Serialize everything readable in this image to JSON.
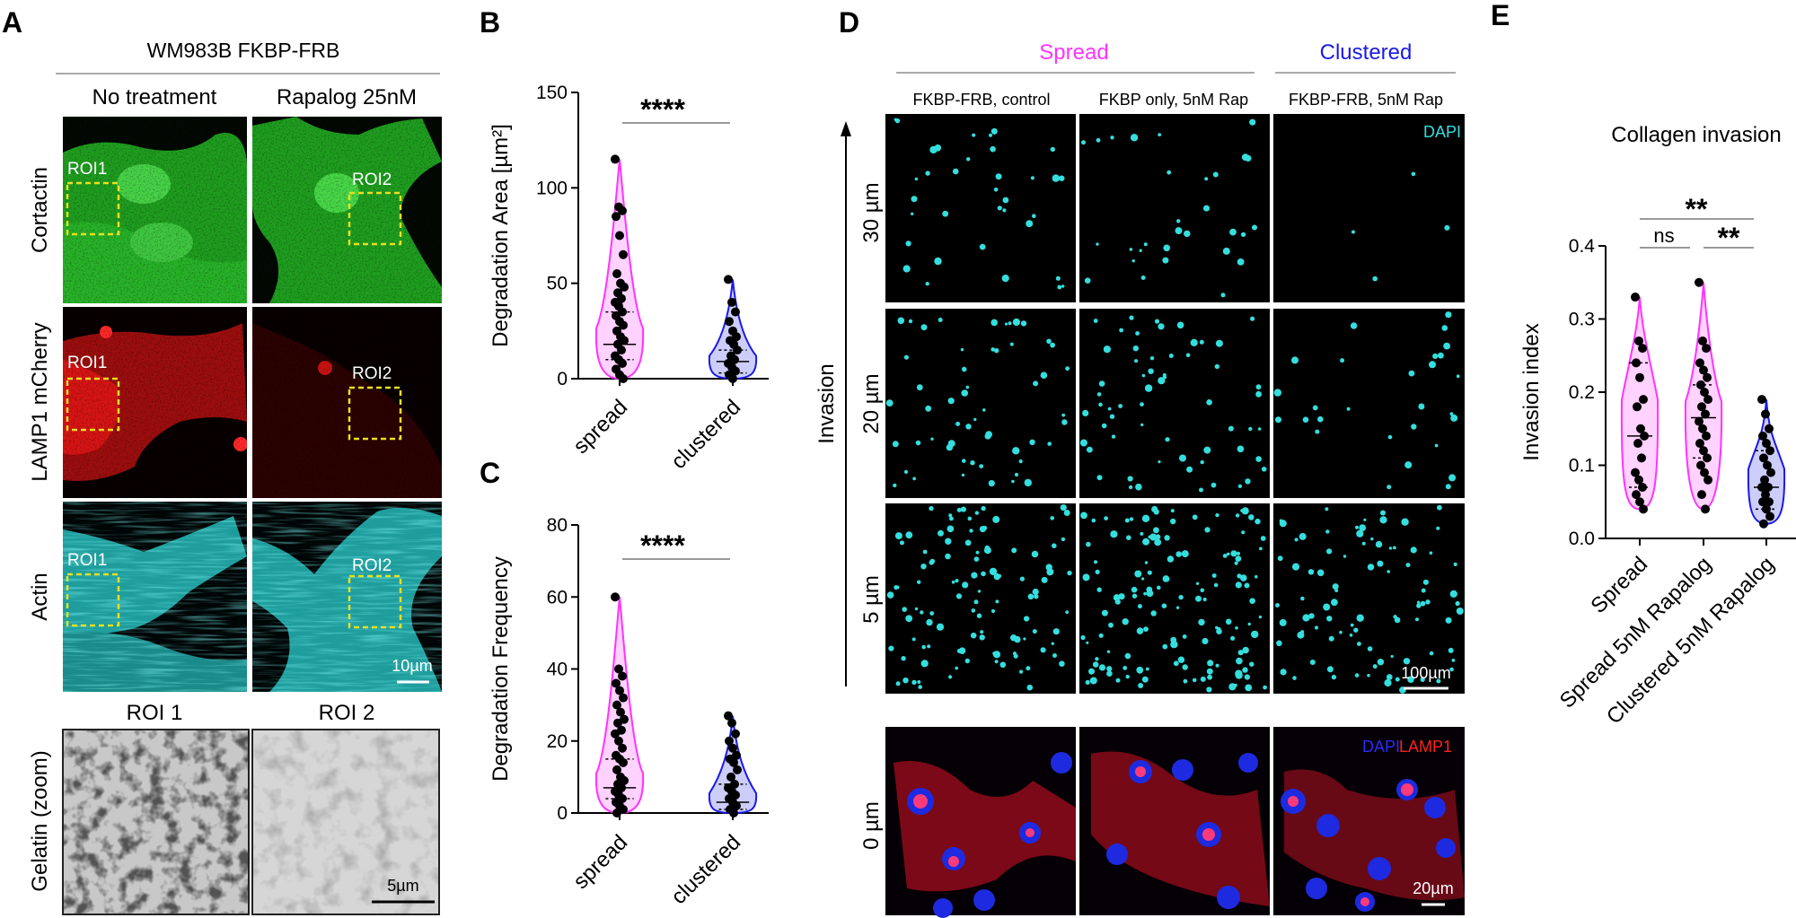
{
  "panels": {
    "A": {
      "letter": "A",
      "title": "WM983B FKBP-FRB",
      "conditions": [
        "No treatment",
        "Rapalog 25nM"
      ],
      "rows": [
        "Cortactin",
        "LAMP1 mCherry",
        "Actin"
      ],
      "roi_labels": [
        "ROI1",
        "ROI2"
      ],
      "scale_bar": "10µm",
      "zoom_titles": [
        "ROI 1",
        "ROI 2"
      ],
      "zoom_row": "Gelatin (zoom)",
      "zoom_scale": "5µm"
    },
    "B": {
      "letter": "B",
      "significance": "****"
    },
    "C": {
      "letter": "C",
      "significance": "****"
    },
    "D": {
      "letter": "D",
      "groups": [
        "Spread",
        "Clustered"
      ],
      "columns": [
        "FKBP-FRB, control",
        "FKBP only, 5nM Rap",
        "FKBP-FRB, 5nM Rap"
      ],
      "axis_label": "Invasion",
      "depths": [
        "30 µm",
        "20 µm",
        "5 µm",
        "0 µm"
      ],
      "dapi_label": "DAPI",
      "lamp1_label": "LAMP1",
      "scale_bar": "100µm",
      "zoom_scale": "20µm"
    },
    "E": {
      "letter": "E",
      "title": "Collagen invasion",
      "sig_top": "**",
      "sig_ns": "ns",
      "sig_right": "**"
    }
  },
  "colors": {
    "magenta": "#ff33ff",
    "blue": "#1a1ae6",
    "green": "#2fc52f",
    "red": "#e01010",
    "cyan": "#35dede",
    "roi": "#e8e020"
  },
  "chart_data": [
    {
      "panel": "B",
      "type": "violin",
      "ylabel": "Degradation Area [µm²]",
      "categories": [
        "spread",
        "clustered"
      ],
      "ylim": [
        0,
        150
      ],
      "yticks": [
        0,
        50,
        100,
        150
      ],
      "series": [
        {
          "name": "spread",
          "median": 18,
          "q1": 10,
          "q3": 35,
          "points": [
            115,
            90,
            88,
            85,
            75,
            65,
            55,
            50,
            48,
            45,
            42,
            40,
            38,
            35,
            33,
            30,
            28,
            25,
            22,
            20,
            18,
            15,
            12,
            10,
            8,
            5,
            2,
            0
          ]
        },
        {
          "name": "clustered",
          "median": 9,
          "q1": 3,
          "q3": 15,
          "points": [
            52,
            40,
            35,
            30,
            25,
            22,
            20,
            18,
            15,
            12,
            10,
            8,
            6,
            4,
            2,
            0
          ]
        }
      ]
    },
    {
      "panel": "C",
      "type": "violin",
      "ylabel": "Degradation Frequency",
      "categories": [
        "spread",
        "clustered"
      ],
      "ylim": [
        0,
        80
      ],
      "yticks": [
        0,
        20,
        40,
        60,
        80
      ],
      "series": [
        {
          "name": "spread",
          "median": 7,
          "q1": 4,
          "q3": 15,
          "points": [
            60,
            40,
            38,
            36,
            34,
            32,
            30,
            28,
            26,
            25,
            23,
            22,
            20,
            18,
            16,
            15,
            14,
            12,
            10,
            9,
            8,
            7,
            6,
            5,
            4,
            3,
            2,
            1,
            0
          ]
        },
        {
          "name": "clustered",
          "median": 3,
          "q1": 1,
          "q3": 8,
          "points": [
            27,
            25,
            22,
            20,
            18,
            16,
            15,
            14,
            12,
            10,
            8,
            7,
            6,
            5,
            4,
            3,
            2,
            1,
            0
          ]
        }
      ]
    },
    {
      "panel": "E",
      "type": "violin",
      "ylabel": "Invasion index",
      "categories": [
        "Spread",
        "Spread 5nM Rapalog",
        "Clustered 5nM Rapalog"
      ],
      "ylim": [
        0,
        0.4
      ],
      "yticks": [
        "0.0",
        "0.1",
        "0.2",
        "0.3",
        "0.4"
      ],
      "series": [
        {
          "name": "Spread",
          "median": 0.14,
          "q1": 0.07,
          "q3": 0.24,
          "points": [
            0.33,
            0.27,
            0.26,
            0.24,
            0.22,
            0.19,
            0.18,
            0.15,
            0.14,
            0.13,
            0.11,
            0.09,
            0.08,
            0.07,
            0.06,
            0.05,
            0.04
          ]
        },
        {
          "name": "Spread 5nM Rapalog",
          "median": 0.165,
          "q1": 0.11,
          "q3": 0.21,
          "points": [
            0.35,
            0.27,
            0.26,
            0.24,
            0.23,
            0.22,
            0.21,
            0.2,
            0.19,
            0.18,
            0.17,
            0.16,
            0.15,
            0.14,
            0.13,
            0.12,
            0.11,
            0.1,
            0.09,
            0.08,
            0.06,
            0.04
          ]
        },
        {
          "name": "Clustered 5nM Rapalog",
          "median": 0.07,
          "q1": 0.04,
          "q3": 0.12,
          "points": [
            0.19,
            0.17,
            0.15,
            0.14,
            0.13,
            0.12,
            0.11,
            0.1,
            0.09,
            0.08,
            0.07,
            0.07,
            0.06,
            0.05,
            0.05,
            0.04,
            0.03,
            0.02
          ]
        }
      ]
    }
  ]
}
